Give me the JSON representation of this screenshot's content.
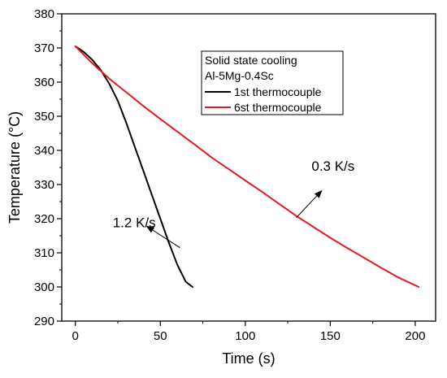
{
  "chart_data": {
    "type": "line",
    "title": "",
    "xlabel": "Time (s)",
    "ylabel": "Temperature (°C)",
    "xlim": [
      -8,
      212
    ],
    "ylim": [
      290,
      380
    ],
    "x_ticks": [
      0,
      50,
      100,
      150,
      200
    ],
    "y_ticks": [
      290,
      300,
      310,
      320,
      330,
      340,
      350,
      360,
      370,
      380
    ],
    "grid": false,
    "legend": {
      "placement": "top-right",
      "header_lines": [
        "Solid state cooling",
        "Al-5Mg-0.4Sc"
      ]
    },
    "series": [
      {
        "name": "1st thermocouple",
        "color": "#000000",
        "x": [
          0,
          5,
          10,
          15,
          20,
          25,
          30,
          35,
          40,
          45,
          50,
          55,
          60,
          65,
          69
        ],
        "y": [
          370.5,
          368.8,
          366.5,
          363.5,
          359.5,
          354.5,
          348.0,
          341.0,
          334.0,
          327.0,
          320.0,
          313.0,
          306.5,
          301.5,
          300.0
        ]
      },
      {
        "name": "6st thermocouple",
        "color": "#e8191f",
        "x": [
          0,
          10,
          20,
          30,
          40,
          50,
          60,
          70,
          80,
          90,
          100,
          110,
          120,
          130,
          140,
          150,
          160,
          170,
          180,
          190,
          202
        ],
        "y": [
          370.5,
          365.5,
          361.0,
          357.0,
          353.0,
          349.2,
          345.5,
          341.8,
          338.0,
          334.6,
          331.2,
          327.8,
          324.3,
          320.8,
          317.6,
          314.4,
          311.4,
          308.5,
          305.6,
          302.8,
          300.0
        ]
      }
    ],
    "annotations": [
      {
        "text": "1.2 K/s",
        "text_at": [
          22,
          317.5
        ],
        "arrow_from": [
          61.5,
          311.5
        ],
        "arrow_to": [
          42,
          317.8
        ]
      },
      {
        "text": "0.3 K/s",
        "text_at": [
          139,
          334
        ],
        "arrow_from": [
          130,
          320.3
        ],
        "arrow_to": [
          145,
          328.2
        ]
      }
    ]
  }
}
